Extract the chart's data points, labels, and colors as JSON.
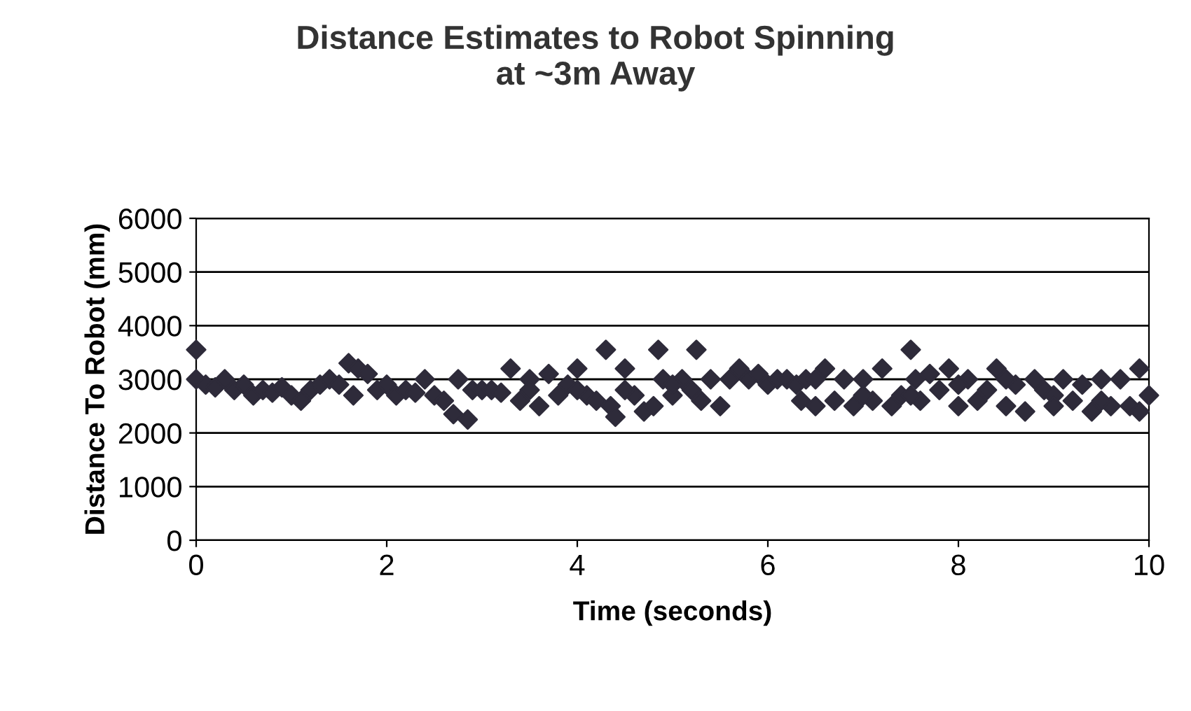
{
  "chart_data": {
    "type": "scatter",
    "title": "Distance Estimates to Robot Spinning\nat ~3m Away",
    "xlabel": "Time (seconds)",
    "ylabel": "Distance To Robot (mm)",
    "x": [
      0,
      0,
      0.1,
      0.2,
      0.3,
      0.4,
      0.5,
      0.6,
      0.7,
      0.8,
      0.9,
      1.0,
      1.1,
      1.2,
      1.3,
      1.4,
      1.5,
      1.6,
      1.65,
      1.7,
      1.8,
      1.9,
      2.0,
      2.1,
      2.2,
      2.3,
      2.4,
      2.5,
      2.6,
      2.7,
      2.75,
      2.85,
      2.9,
      3.0,
      3.1,
      3.2,
      3.3,
      3.4,
      3.5,
      3.6,
      3.7,
      3.8,
      3.9,
      4.0,
      4.1,
      4.2,
      4.3,
      4.35,
      4.4,
      4.5,
      4.6,
      4.7,
      4.8,
      4.85,
      4.9,
      5.0,
      5.1,
      5.2,
      5.25,
      5.3,
      5.4,
      5.5,
      5.6,
      5.7,
      5.8,
      5.9,
      6.0,
      6.1,
      6.2,
      6.3,
      6.35,
      6.4,
      6.5,
      6.6,
      6.7,
      6.8,
      6.9,
      7.0,
      7.1,
      7.2,
      7.3,
      7.4,
      7.5,
      7.55,
      7.6,
      7.7,
      7.8,
      7.9,
      8.0,
      8.1,
      8.2,
      8.3,
      8.4,
      8.5,
      8.6,
      8.7,
      8.8,
      8.9,
      9.0,
      9.1,
      9.2,
      9.3,
      9.4,
      9.5,
      9.6,
      9.7,
      9.8,
      9.9,
      10.0,
      6.5,
      7.0,
      7.5,
      8.0,
      8.5,
      9.0,
      9.5,
      9.9,
      3.5,
      4.0,
      4.5,
      5.0
    ],
    "values": [
      3550,
      3000,
      2900,
      2850,
      3000,
      2800,
      2900,
      2700,
      2800,
      2750,
      2850,
      2700,
      2600,
      2800,
      2900,
      3000,
      2900,
      3300,
      2700,
      3200,
      3100,
      2800,
      2900,
      2700,
      2800,
      2750,
      3000,
      2700,
      2600,
      2350,
      3000,
      2250,
      2800,
      2800,
      2800,
      2750,
      3200,
      2600,
      3000,
      2500,
      3100,
      2700,
      2900,
      3200,
      2700,
      2600,
      3550,
      2500,
      2300,
      3200,
      2700,
      2400,
      2500,
      3550,
      3000,
      2700,
      3000,
      2800,
      3550,
      2600,
      3000,
      2500,
      3000,
      3200,
      3000,
      3100,
      2900,
      3000,
      3000,
      2900,
      2600,
      3000,
      2500,
      3200,
      2600,
      3000,
      2500,
      3000,
      2600,
      3200,
      2500,
      2700,
      3550,
      3000,
      2600,
      3100,
      2800,
      3200,
      2500,
      3000,
      2600,
      2800,
      3200,
      2500,
      2900,
      2400,
      3000,
      2800,
      2700,
      3000,
      2600,
      2900,
      2400,
      3000,
      2500,
      3000,
      2500,
      3200,
      2700,
      3000,
      2700,
      2700,
      2900,
      3000,
      2500,
      2600,
      2400,
      2800,
      2800,
      2800,
      2900
    ],
    "color": "#2e2b3a",
    "marker": "diamond",
    "xlim": [
      0,
      10
    ],
    "ylim": [
      0,
      6000
    ],
    "xticks": [
      0,
      2,
      4,
      6,
      8,
      10
    ],
    "yticks": [
      0,
      1000,
      2000,
      3000,
      4000,
      5000,
      6000
    ],
    "grid": "y"
  }
}
